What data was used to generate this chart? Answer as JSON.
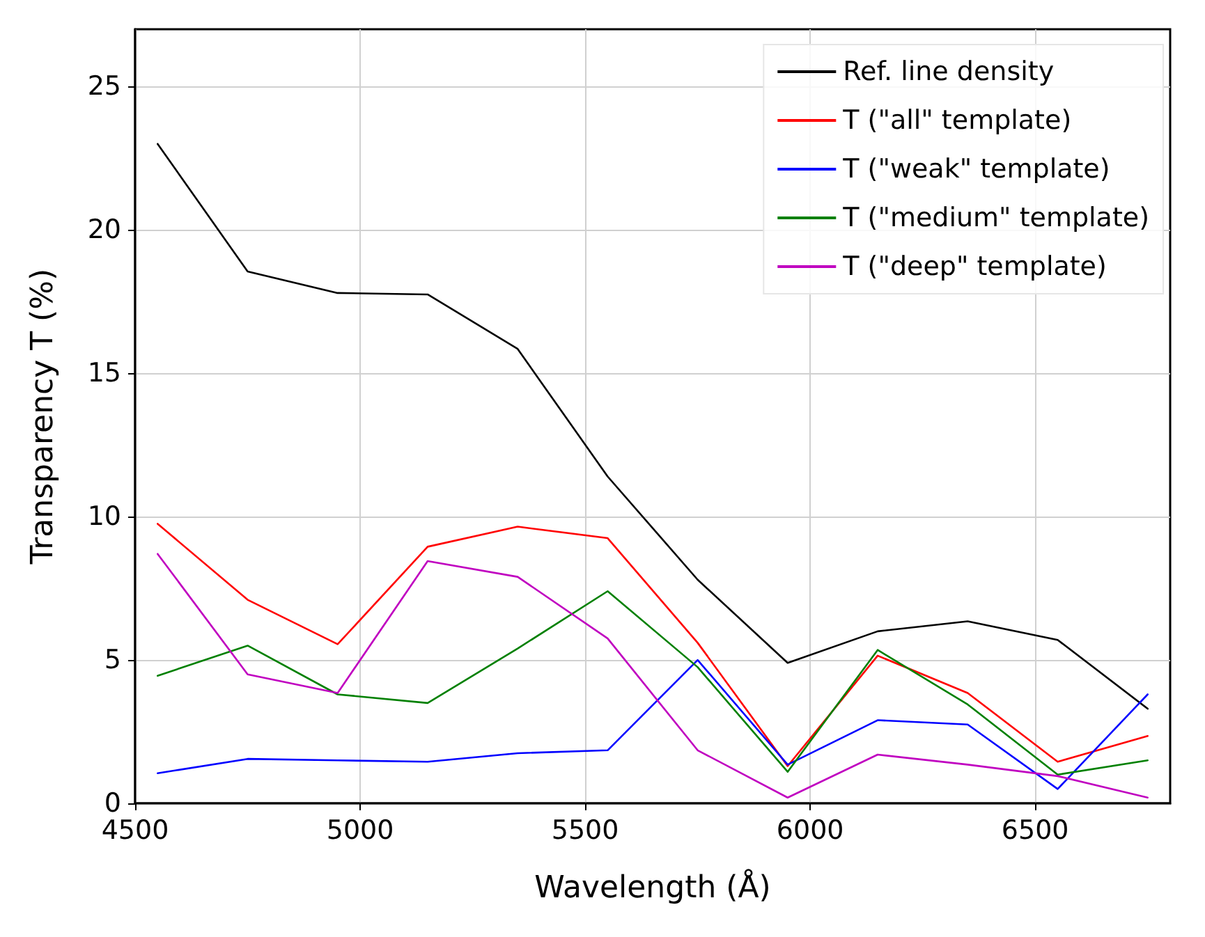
{
  "chart_data": {
    "type": "line",
    "xlabel": "Wavelength (Å)",
    "ylabel": "Transparency T (%)",
    "x": [
      4550,
      4750,
      4950,
      5150,
      5350,
      5550,
      5750,
      5950,
      6150,
      6350,
      6550,
      6750
    ],
    "xlim": [
      4500,
      6800
    ],
    "xticks": [
      4500,
      5000,
      5500,
      6000,
      6500
    ],
    "ylim": [
      0,
      27
    ],
    "yticks": [
      0,
      5,
      10,
      15,
      20,
      25
    ],
    "grid": true,
    "legend": "top right",
    "marker": "none",
    "line_style": "solid",
    "series": [
      {
        "name": "Ref. line density",
        "color": "#000000",
        "values": [
          23.0,
          18.55,
          17.8,
          17.75,
          15.85,
          11.4,
          7.8,
          4.9,
          6.0,
          6.35,
          5.7,
          3.3
        ]
      },
      {
        "name": "T (\"all\" template)",
        "color": "#ff0000",
        "values": [
          9.75,
          7.1,
          5.55,
          8.95,
          9.65,
          9.25,
          5.6,
          1.3,
          5.15,
          3.85,
          1.45,
          2.35
        ]
      },
      {
        "name": "T (\"weak\" template)",
        "color": "#0000ff",
        "values": [
          1.05,
          1.55,
          1.5,
          1.45,
          1.75,
          1.85,
          5.0,
          1.35,
          2.9,
          2.75,
          0.5,
          3.8
        ]
      },
      {
        "name": "T (\"medium\" template)",
        "color": "#008000",
        "values": [
          4.45,
          5.5,
          3.8,
          3.5,
          5.4,
          7.4,
          4.75,
          1.1,
          5.35,
          3.45,
          1.0,
          1.5
        ]
      },
      {
        "name": "T (\"deep\" template)",
        "color": "#c000c0",
        "values": [
          8.7,
          4.5,
          3.85,
          8.45,
          7.9,
          5.75,
          1.85,
          0.2,
          1.7,
          1.35,
          0.95,
          0.2
        ]
      }
    ]
  }
}
